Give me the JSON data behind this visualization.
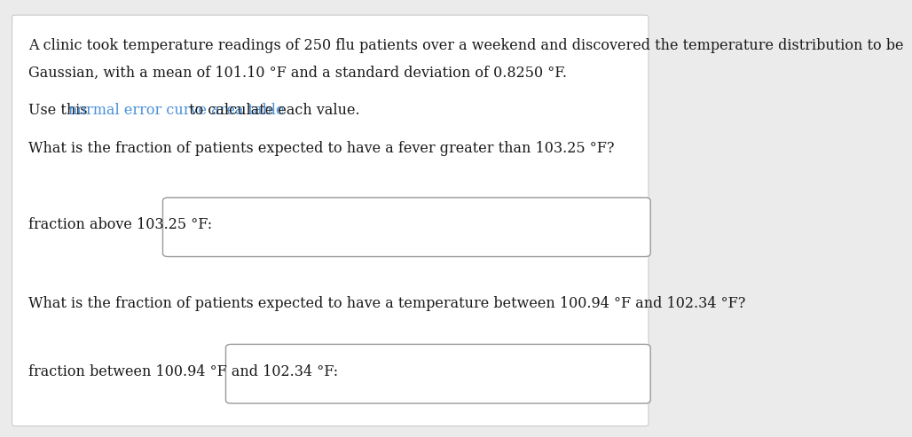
{
  "background_color": "#ebebeb",
  "panel_color": "#ffffff",
  "text_color": "#1a1a1a",
  "link_color": "#4a90d9",
  "line1": "A clinic took temperature readings of 250 flu patients over a weekend and discovered the temperature distribution to be",
  "line2": "Gaussian, with a mean of 101.10 °F and a standard deviation of 0.8250 °F.",
  "line3_prefix": "Use this ",
  "line3_link": "normal error curve area table",
  "line3_suffix": " to calculate each value.",
  "line4": "What is the fraction of patients expected to have a fever greater than 103.25 °F?",
  "label1": "fraction above 103.25 °F:",
  "line5": "What is the fraction of patients expected to have a temperature between 100.94 °F and 102.34 °F?",
  "label2": "fraction between 100.94 °F and 102.34 °F:",
  "font_size_main": 11.5,
  "font_family": "serif"
}
